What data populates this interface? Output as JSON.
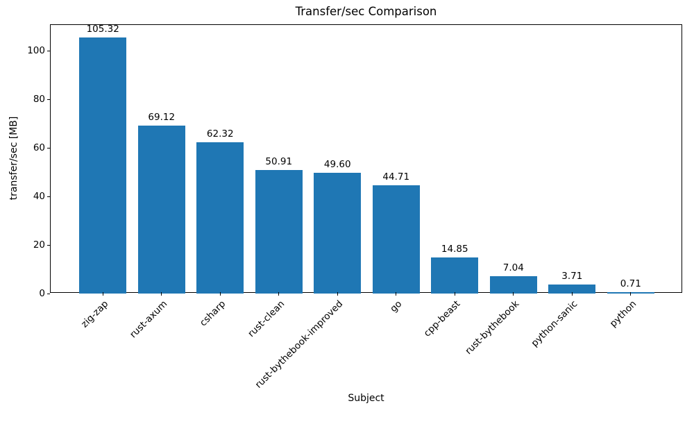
{
  "chart_data": {
    "type": "bar",
    "title": "Transfer/sec Comparison",
    "xlabel": "Subject",
    "ylabel": "transfer/sec [MB]",
    "categories": [
      "zig-zap",
      "rust-axum",
      "csharp",
      "rust-clean",
      "rust-bythebook-improved",
      "go",
      "cpp-beast",
      "rust-bythebook",
      "python-sanic",
      "python"
    ],
    "values": [
      105.32,
      69.12,
      62.32,
      50.91,
      49.6,
      44.71,
      14.85,
      7.04,
      3.71,
      0.71
    ],
    "value_labels": [
      "105.32",
      "69.12",
      "62.32",
      "50.91",
      "49.60",
      "44.71",
      "14.85",
      "7.04",
      "3.71",
      "0.71"
    ],
    "yticks": [
      0,
      20,
      40,
      60,
      80,
      100
    ],
    "ylim": [
      0,
      110.6
    ],
    "bar_color": "#1f77b4",
    "axis_color": "#000000",
    "background_color": "#ffffff",
    "grid": false,
    "legend": null,
    "x_tick_rotation_deg": 45
  }
}
